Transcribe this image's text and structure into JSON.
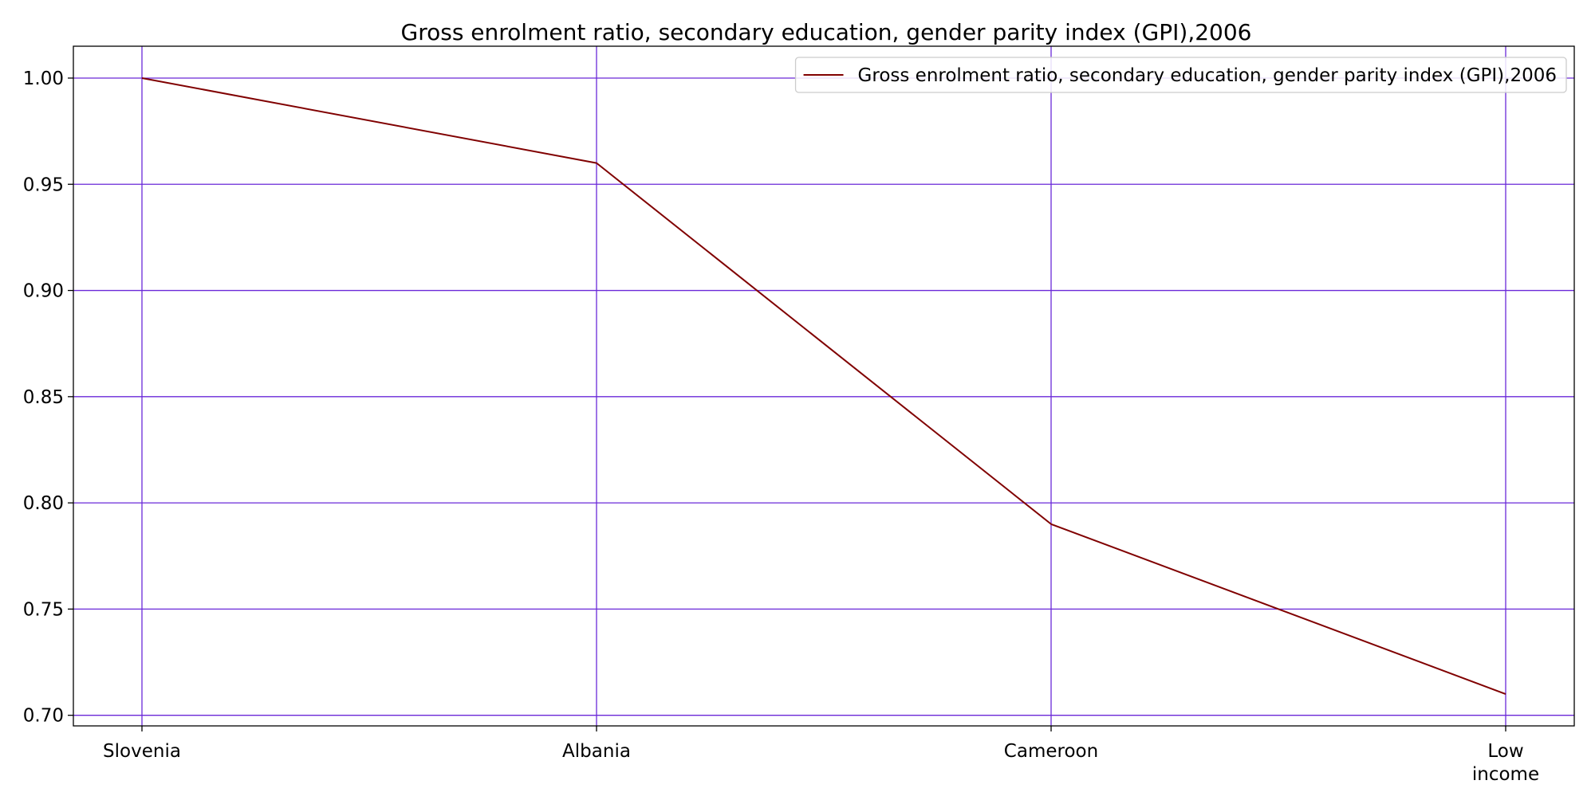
{
  "chart_data": {
    "type": "line",
    "title": "Gross enrolment ratio, secondary education, gender parity index (GPI),2006",
    "xlabel": "",
    "ylabel": "",
    "categories": [
      "Slovenia",
      "Albania",
      "Cameroon",
      "Low income"
    ],
    "category_lines": [
      [
        "Slovenia"
      ],
      [
        "Albania"
      ],
      [
        "Cameroon"
      ],
      [
        "Low",
        "income"
      ]
    ],
    "series": [
      {
        "name": "Gross enrolment ratio, secondary education, gender parity index (GPI),2006",
        "values": [
          1.0,
          0.96,
          0.79,
          0.71
        ],
        "color": "#800000"
      }
    ],
    "ylim": [
      0.695,
      1.015
    ],
    "yticks": [
      0.7,
      0.75,
      0.8,
      0.85,
      0.9,
      0.95,
      1.0
    ],
    "ytick_labels": [
      "0.70",
      "0.75",
      "0.80",
      "0.85",
      "0.90",
      "0.95",
      "1.00"
    ],
    "grid": true,
    "grid_color": "#6a28d8",
    "legend_position": "top-right"
  }
}
